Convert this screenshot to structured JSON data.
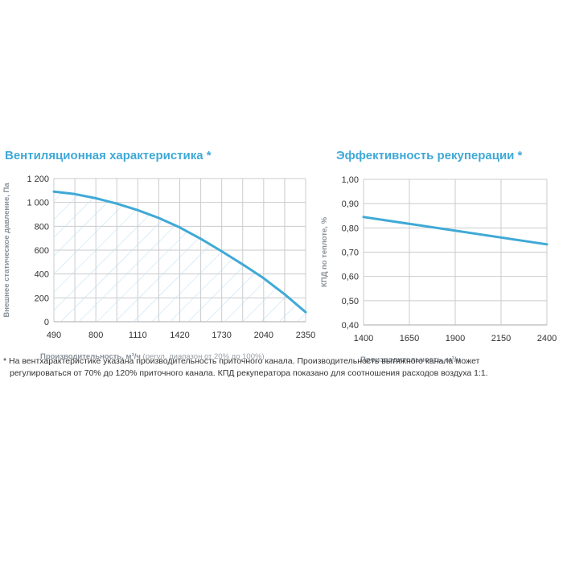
{
  "colors": {
    "accent": "#3fa9d6",
    "grid": "#c9cbcd",
    "hatch": "#b9def0",
    "text": "#333333",
    "axis_label": "#8a9199"
  },
  "chart_data": [
    {
      "type": "area",
      "title": "Вентиляционная характеристика *",
      "ylabel": "Внешнее статическое давление, Па",
      "xlabel_main": "Производительность, м³/ч",
      "xlabel_note": " (регул. диапазон от 20% до 100%)",
      "x_ticks": [
        "490",
        "800",
        "1110",
        "1420",
        "1730",
        "2040",
        "2350"
      ],
      "y_ticks": [
        "0",
        "200",
        "400",
        "600",
        "800",
        "1 000",
        "1 200"
      ],
      "xlim": [
        490,
        2350
      ],
      "ylim": [
        0,
        1200
      ],
      "grid": true,
      "fill": "hatched",
      "series": [
        {
          "x": [
            490,
            645,
            800,
            955,
            1110,
            1265,
            1420,
            1575,
            1730,
            1885,
            2040,
            2195,
            2350
          ],
          "values": [
            1090,
            1070,
            1035,
            990,
            935,
            870,
            790,
            695,
            590,
            480,
            365,
            230,
            80
          ]
        }
      ]
    },
    {
      "type": "line",
      "title": "Эффективность рекуперации *",
      "ylabel": "КПД по теплоте, %",
      "xlabel_main": "Производительность, м³/ч",
      "xlabel_note": "",
      "x_ticks": [
        "1400",
        "1650",
        "1900",
        "2150",
        "2400"
      ],
      "y_ticks": [
        "0,40",
        "0,50",
        "0,60",
        "0,70",
        "0,80",
        "0,90",
        "1,00"
      ],
      "xlim": [
        1400,
        2400
      ],
      "ylim": [
        0.4,
        1.0
      ],
      "grid": true,
      "series": [
        {
          "x": [
            1400,
            2400
          ],
          "values": [
            0.845,
            0.732
          ]
        }
      ]
    }
  ],
  "footnote": {
    "line1": "* На вентхарактеристике указана производительность приточного канала. Производительность вытяжного канала может",
    "line2": "регулироваться от 70% до 120% приточного канала. КПД рекуператора показано для соотношения расходов воздуха 1:1."
  }
}
